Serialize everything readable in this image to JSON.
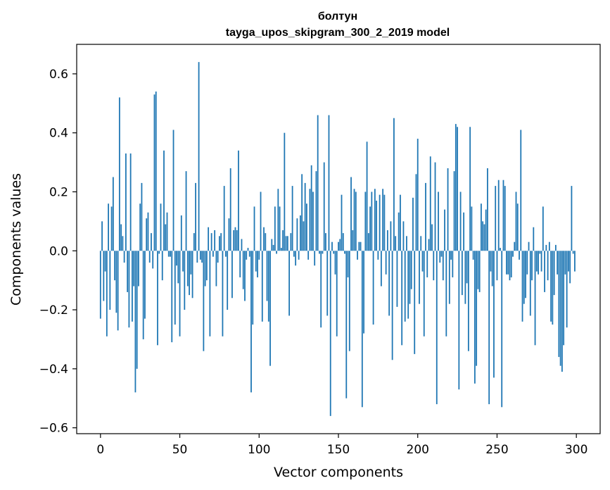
{
  "chart_data": {
    "type": "bar",
    "title": "болтун",
    "subtitle": "tayga_upos_skipgram_300_2_2019 model",
    "xlabel": "Vector components",
    "ylabel": "Components values",
    "xlim": [
      -15,
      315
    ],
    "ylim": [
      -0.62,
      0.7
    ],
    "xticks": [
      0,
      50,
      100,
      150,
      200,
      250,
      300
    ],
    "xtick_labels": [
      "0",
      "50",
      "100",
      "150",
      "200",
      "250",
      "300"
    ],
    "yticks": [
      -0.6,
      -0.4,
      -0.2,
      0.0,
      0.2,
      0.4,
      0.6
    ],
    "ytick_labels": [
      "−0.6",
      "−0.4",
      "−0.2",
      "0.0",
      "0.2",
      "0.4",
      "0.6"
    ],
    "bar_color": "#1f77b4",
    "x": "0..299",
    "values": [
      -0.23,
      0.1,
      -0.17,
      -0.07,
      -0.29,
      0.16,
      -0.2,
      0.15,
      0.25,
      -0.1,
      -0.21,
      -0.27,
      0.52,
      0.09,
      0.05,
      -0.04,
      0.33,
      -0.14,
      -0.26,
      0.33,
      -0.24,
      -0.12,
      -0.48,
      -0.4,
      -0.12,
      0.16,
      0.23,
      -0.3,
      -0.23,
      0.11,
      0.13,
      -0.04,
      0.06,
      -0.06,
      0.53,
      0.54,
      -0.32,
      -0.01,
      0.16,
      -0.1,
      0.34,
      0.09,
      0.13,
      -0.02,
      -0.02,
      -0.31,
      0.41,
      -0.25,
      -0.05,
      -0.11,
      -0.29,
      0.12,
      -0.07,
      -0.2,
      0.27,
      -0.12,
      -0.15,
      -0.08,
      -0.16,
      0.06,
      0.23,
      -0.04,
      0.64,
      -0.03,
      -0.04,
      -0.34,
      -0.12,
      -0.1,
      0.08,
      -0.29,
      0.06,
      -0.02,
      0.07,
      -0.12,
      -0.04,
      0.05,
      0.06,
      -0.29,
      0.22,
      -0.02,
      -0.2,
      0.11,
      0.28,
      -0.16,
      0.07,
      0.08,
      0.07,
      0.34,
      -0.09,
      0.04,
      -0.13,
      -0.17,
      -0.03,
      0.01,
      -0.02,
      -0.48,
      -0.25,
      0.15,
      -0.07,
      -0.09,
      -0.03,
      0.2,
      -0.24,
      0.08,
      0.06,
      -0.17,
      -0.24,
      -0.39,
      0.04,
      0.02,
      0.15,
      -0.01,
      0.21,
      0.15,
      0.01,
      0.07,
      0.4,
      0.05,
      0.05,
      -0.22,
      0.06,
      0.22,
      -0.02,
      -0.05,
      0.11,
      -0.03,
      0.12,
      0.26,
      0.1,
      0.23,
      0.16,
      -0.03,
      0.21,
      0.29,
      0.2,
      -0.05,
      0.27,
      0.46,
      -0.01,
      -0.26,
      -0.01,
      0.3,
      0.06,
      -0.22,
      0.46,
      -0.56,
      0.03,
      -0.01,
      -0.08,
      -0.29,
      0.03,
      0.04,
      0.19,
      0.06,
      -0.01,
      -0.5,
      -0.09,
      -0.34,
      0.25,
      0.07,
      0.21,
      0.2,
      -0.03,
      0.03,
      0.03,
      -0.53,
      -0.28,
      0.2,
      0.37,
      0.06,
      0.15,
      0.2,
      -0.25,
      0.21,
      0.17,
      -0.03,
      0.19,
      -0.12,
      0.21,
      0.19,
      -0.08,
      0.07,
      -0.22,
      0.1,
      -0.37,
      0.45,
      0.05,
      -0.19,
      0.13,
      0.19,
      -0.32,
      0.1,
      -0.24,
      0.05,
      -0.23,
      -0.18,
      -0.13,
      0.18,
      -0.35,
      0.26,
      0.38,
      -0.18,
      0.05,
      -0.07,
      -0.29,
      0.23,
      -0.09,
      0.04,
      0.32,
      0.09,
      -0.1,
      0.3,
      -0.52,
      0.2,
      -0.04,
      -0.02,
      -0.1,
      0.14,
      -0.29,
      0.28,
      -0.18,
      -0.03,
      -0.09,
      0.27,
      0.43,
      0.42,
      -0.47,
      0.2,
      -0.15,
      0.13,
      -0.18,
      -0.11,
      -0.34,
      0.42,
      0.15,
      -0.03,
      -0.45,
      -0.39,
      -0.13,
      -0.14,
      0.16,
      0.1,
      0.09,
      0.14,
      0.28,
      -0.52,
      -0.07,
      -0.12,
      -0.43,
      0.22,
      -0.1,
      0.24,
      0.01,
      -0.53,
      0.24,
      0.22,
      -0.08,
      -0.08,
      -0.1,
      -0.09,
      -0.02,
      0.03,
      0.2,
      0.16,
      -0.03,
      0.41,
      -0.24,
      -0.18,
      -0.16,
      -0.08,
      0.03,
      -0.22,
      -0.1,
      0.08,
      -0.32,
      -0.07,
      -0.08,
      -0.01,
      -0.07,
      0.15,
      -0.14,
      0.02,
      -0.1,
      0.03,
      -0.24,
      -0.25,
      -0.15,
      0.02,
      -0.08,
      -0.36,
      -0.39,
      -0.41,
      -0.32,
      -0.08,
      -0.26,
      -0.07,
      -0.11,
      0.22,
      -0.01,
      -0.07
    ]
  }
}
